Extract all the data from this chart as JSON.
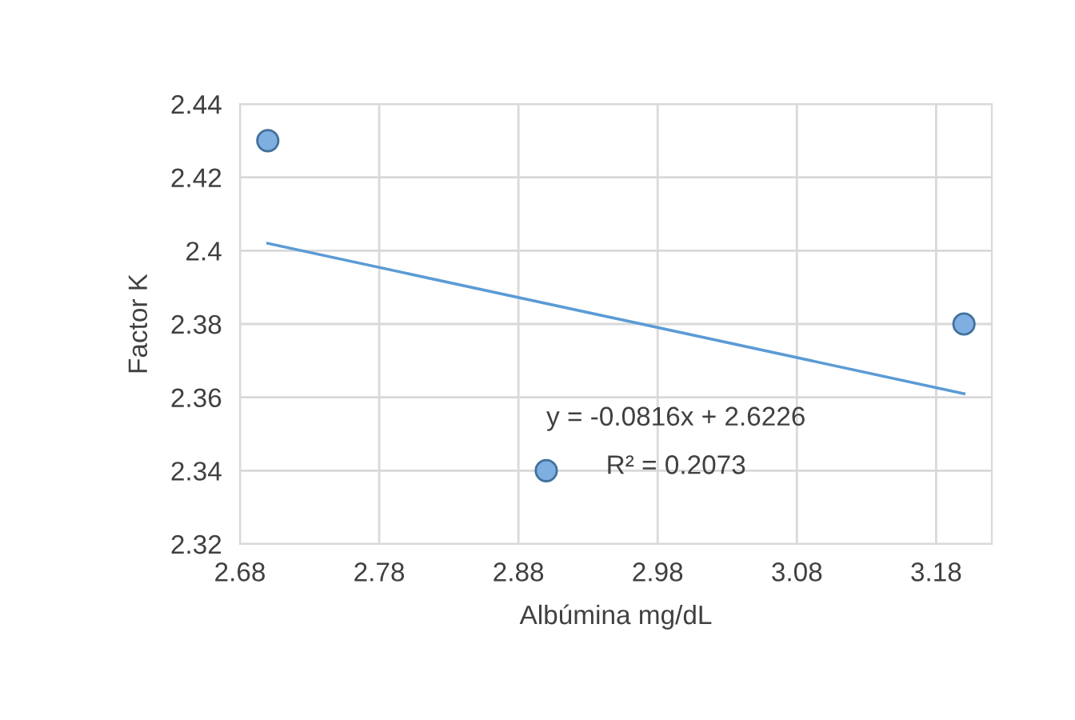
{
  "chart_data": {
    "type": "scatter",
    "xlabel": "Albúmina mg/dL",
    "ylabel": "Factor K",
    "series": [
      {
        "color": "#7faee0",
        "x": [
          2.7,
          2.9,
          3.2
        ],
        "values": [
          2.43,
          2.34,
          2.38
        ],
        "marker": "circle"
      },
      {
        "type": "line",
        "color": "#5b9bd5",
        "x": [
          2.7,
          3.2
        ],
        "values": [
          2.402,
          2.361
        ],
        "marker": "none",
        "line_style": "solid"
      }
    ],
    "annotations": [
      "y = -0.0816x + 2.6226",
      "R² = 0.2073"
    ],
    "xlim": [
      2.68,
      3.22
    ],
    "xticks": [
      2.68,
      2.78,
      2.88,
      2.98,
      3.08,
      3.18
    ],
    "ylim": [
      2.32,
      2.44
    ],
    "yticks": [
      2.32,
      2.34,
      2.36,
      2.38,
      2.4,
      2.42,
      2.44
    ],
    "grid": true,
    "legend": false
  }
}
